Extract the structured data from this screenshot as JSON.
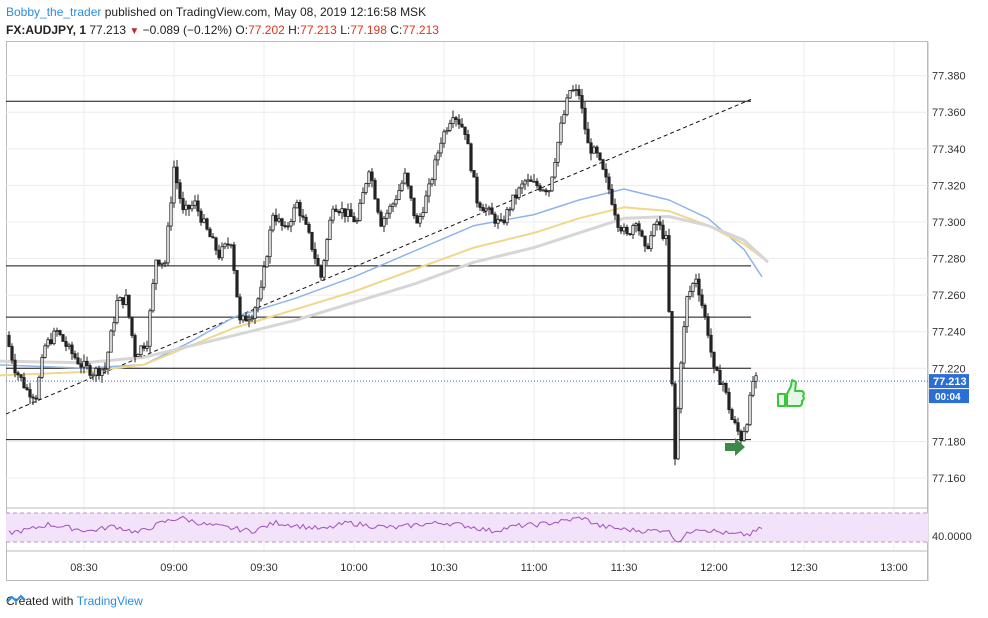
{
  "header": {
    "author": "Bobby_the_trader",
    "published": "published on TradingView.com, May 08, 2019 12:16:58 MSK",
    "symbol": "FX:AUDJPY, 1",
    "last": "77.213",
    "change_arrow": "▼",
    "change": "−0.089 (−0.12%)",
    "o_label": "O:",
    "o_value": "77.202",
    "h_label": "H:",
    "h_value": "77.213",
    "l_label": "L:",
    "l_value": "77.198",
    "c_label": "C:",
    "c_value": "77.213"
  },
  "footer": {
    "created_with": "Created with",
    "brand": "TradingView"
  },
  "colors": {
    "up": "#ffffff",
    "down": "#222222",
    "wick": "#222222",
    "ma_fast": "#8fb4ea",
    "ma_mid": "#f0d78a",
    "ma_slow": "#d6d6d6",
    "rsi": "#a050b8",
    "rsi_band": "#f2e3fa",
    "price_line": "#2a6fd6",
    "price_label_bg": "#2a6fd6",
    "grid": "#ececec",
    "signal_arrow": "#3c8a4a",
    "thumb": "#3cc43c"
  },
  "chart_data": {
    "type": "candlestick",
    "symbol": "FX:AUDJPY",
    "interval": "1",
    "x_ticks": [
      "08:30",
      "09:00",
      "09:30",
      "10:00",
      "10:30",
      "11:00",
      "11:30",
      "12:00",
      "12:30",
      "13:00"
    ],
    "y_ticks": [
      "77.380",
      "77.360",
      "77.340",
      "77.320",
      "77.300",
      "77.280",
      "77.260",
      "77.240",
      "77.220",
      "77.180",
      "77.160"
    ],
    "ylim": [
      77.148,
      77.394
    ],
    "last_price_label": "77.213",
    "countdown_label": "00:04",
    "rsi_tick": "40.0000",
    "price_path": [
      [
        "08:05",
        77.238
      ],
      [
        "08:08",
        77.22
      ],
      [
        "08:12",
        77.208
      ],
      [
        "08:15",
        77.205
      ],
      [
        "08:18",
        77.232
      ],
      [
        "08:22",
        77.24
      ],
      [
        "08:26",
        77.23
      ],
      [
        "08:30",
        77.222
      ],
      [
        "08:34",
        77.218
      ],
      [
        "08:38",
        77.22
      ],
      [
        "08:42",
        77.256
      ],
      [
        "08:45",
        77.258
      ],
      [
        "08:48",
        77.228
      ],
      [
        "08:52",
        77.235
      ],
      [
        "08:55",
        77.28
      ],
      [
        "08:58",
        77.278
      ],
      [
        "09:01",
        77.33
      ],
      [
        "09:04",
        77.305
      ],
      [
        "09:08",
        77.31
      ],
      [
        "09:12",
        77.295
      ],
      [
        "09:16",
        77.282
      ],
      [
        "09:20",
        77.29
      ],
      [
        "09:23",
        77.245
      ],
      [
        "09:27",
        77.25
      ],
      [
        "09:30",
        77.262
      ],
      [
        "09:34",
        77.305
      ],
      [
        "09:38",
        77.295
      ],
      [
        "09:42",
        77.31
      ],
      [
        "09:46",
        77.292
      ],
      [
        "09:50",
        77.27
      ],
      [
        "09:54",
        77.31
      ],
      [
        "09:58",
        77.305
      ],
      [
        "10:02",
        77.3
      ],
      [
        "10:06",
        77.33
      ],
      [
        "10:10",
        77.3
      ],
      [
        "10:14",
        77.31
      ],
      [
        "10:18",
        77.325
      ],
      [
        "10:22",
        77.298
      ],
      [
        "10:26",
        77.318
      ],
      [
        "10:30",
        77.345
      ],
      [
        "10:34",
        77.36
      ],
      [
        "10:38",
        77.35
      ],
      [
        "10:42",
        77.312
      ],
      [
        "10:46",
        77.305
      ],
      [
        "10:50",
        77.298
      ],
      [
        "10:54",
        77.312
      ],
      [
        "10:58",
        77.322
      ],
      [
        "11:02",
        77.32
      ],
      [
        "11:06",
        77.318
      ],
      [
        "11:10",
        77.352
      ],
      [
        "11:13",
        77.372
      ],
      [
        "11:16",
        77.37
      ],
      [
        "11:19",
        77.342
      ],
      [
        "11:22",
        77.336
      ],
      [
        "11:26",
        77.318
      ],
      [
        "11:29",
        77.3
      ],
      [
        "11:32",
        77.292
      ],
      [
        "11:35",
        77.302
      ],
      [
        "11:38",
        77.284
      ],
      [
        "11:42",
        77.3
      ],
      [
        "11:45",
        77.29
      ],
      [
        "11:48",
        77.17
      ],
      [
        "11:50",
        77.225
      ],
      [
        "11:52",
        77.258
      ],
      [
        "11:55",
        77.27
      ],
      [
        "11:57",
        77.255
      ],
      [
        "11:59",
        77.24
      ],
      [
        "12:01",
        77.218
      ],
      [
        "12:04",
        77.212
      ],
      [
        "12:07",
        77.192
      ],
      [
        "12:10",
        77.182
      ],
      [
        "12:12",
        77.192
      ],
      [
        "12:14",
        77.213
      ]
    ],
    "moving_averages": [
      {
        "points": [
          [
            "08:00",
            77.222
          ],
          [
            "08:30",
            77.22
          ],
          [
            "08:50",
            77.222
          ],
          [
            "09:05",
            77.234
          ],
          [
            "09:20",
            77.248
          ],
          [
            "09:40",
            77.258
          ],
          [
            "10:00",
            77.27
          ],
          [
            "10:20",
            77.284
          ],
          [
            "10:40",
            77.298
          ],
          [
            "11:00",
            77.304
          ],
          [
            "11:15",
            77.312
          ],
          [
            "11:30",
            77.318
          ],
          [
            "11:45",
            77.312
          ],
          [
            "11:58",
            77.302
          ],
          [
            "12:10",
            77.285
          ],
          [
            "12:16",
            77.27
          ]
        ]
      },
      {
        "points": [
          [
            "08:00",
            77.216
          ],
          [
            "08:30",
            77.218
          ],
          [
            "08:50",
            77.222
          ],
          [
            "09:05",
            77.232
          ],
          [
            "09:20",
            77.242
          ],
          [
            "09:40",
            77.252
          ],
          [
            "10:00",
            77.262
          ],
          [
            "10:20",
            77.274
          ],
          [
            "10:40",
            77.286
          ],
          [
            "11:00",
            77.294
          ],
          [
            "11:15",
            77.302
          ],
          [
            "11:30",
            77.308
          ],
          [
            "11:45",
            77.306
          ],
          [
            "11:58",
            77.298
          ],
          [
            "12:10",
            77.288
          ],
          [
            "12:18",
            77.278
          ]
        ]
      },
      {
        "points": [
          [
            "08:00",
            77.224
          ],
          [
            "08:30",
            77.223
          ],
          [
            "08:50",
            77.226
          ],
          [
            "09:05",
            77.232
          ],
          [
            "09:20",
            77.238
          ],
          [
            "09:40",
            77.246
          ],
          [
            "10:00",
            77.256
          ],
          [
            "10:20",
            77.266
          ],
          [
            "10:40",
            77.278
          ],
          [
            "11:00",
            77.286
          ],
          [
            "11:15",
            77.294
          ],
          [
            "11:30",
            77.302
          ],
          [
            "11:45",
            77.303
          ],
          [
            "11:58",
            77.298
          ],
          [
            "12:10",
            77.29
          ],
          [
            "12:18",
            77.278
          ]
        ]
      }
    ],
    "horizontal_levels": [
      77.366,
      77.276,
      77.248,
      77.22,
      77.181
    ],
    "trendline": [
      [
        "08:00",
        77.195
      ],
      [
        "12:18",
        77.367
      ]
    ],
    "rsi_path": [
      [
        "08:05",
        38
      ],
      [
        "08:12",
        42
      ],
      [
        "08:18",
        48
      ],
      [
        "08:25",
        44
      ],
      [
        "08:32",
        40
      ],
      [
        "08:40",
        46
      ],
      [
        "08:48",
        38
      ],
      [
        "08:56",
        50
      ],
      [
        "09:02",
        56
      ],
      [
        "09:10",
        48
      ],
      [
        "09:18",
        44
      ],
      [
        "09:26",
        40
      ],
      [
        "09:34",
        50
      ],
      [
        "09:42",
        46
      ],
      [
        "09:50",
        42
      ],
      [
        "09:58",
        50
      ],
      [
        "10:06",
        46
      ],
      [
        "10:14",
        44
      ],
      [
        "10:22",
        48
      ],
      [
        "10:30",
        50
      ],
      [
        "10:38",
        46
      ],
      [
        "10:46",
        40
      ],
      [
        "10:54",
        46
      ],
      [
        "11:02",
        48
      ],
      [
        "11:10",
        52
      ],
      [
        "11:16",
        56
      ],
      [
        "11:22",
        46
      ],
      [
        "11:30",
        42
      ],
      [
        "11:38",
        40
      ],
      [
        "11:44",
        42
      ],
      [
        "11:48",
        28
      ],
      [
        "11:54",
        44
      ],
      [
        "12:00",
        40
      ],
      [
        "12:06",
        36
      ],
      [
        "12:12",
        36
      ],
      [
        "12:16",
        44
      ]
    ]
  }
}
